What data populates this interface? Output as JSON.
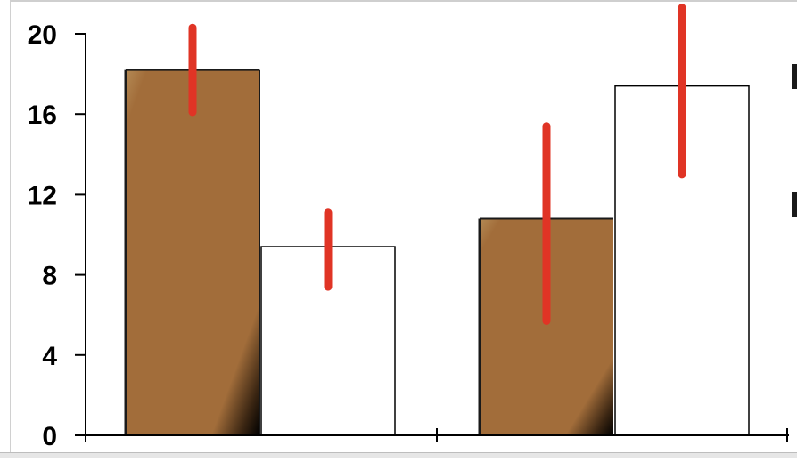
{
  "chart_data": {
    "type": "bar",
    "title": "",
    "xlabel": "",
    "ylabel": "",
    "categories": [
      "",
      ""
    ],
    "ylim": [
      0,
      20
    ],
    "yticks": [
      0,
      4,
      8,
      12,
      16,
      20
    ],
    "grid": false,
    "series": [
      {
        "values": [
          18.2,
          10.8
        ],
        "errors": [
          [
            16.1,
            20.3
          ],
          [
            5.7,
            15.4
          ]
        ],
        "fill": "#a26d3a",
        "style": "gradient-brown"
      },
      {
        "values": [
          9.4,
          17.4
        ],
        "errors": [
          [
            7.4,
            11.1
          ],
          [
            13.0,
            21.3
          ]
        ],
        "fill": "#ffffff",
        "style": "white-outline"
      }
    ],
    "error_bar_color": "#e03425"
  },
  "colors": {
    "frame": "#c8c8c8",
    "axis": "#000000",
    "bar_brown_light": "#b08550",
    "bar_brown": "#a26d3a",
    "bar_brown_dark": "#000000",
    "error_bar": "#e03425"
  }
}
